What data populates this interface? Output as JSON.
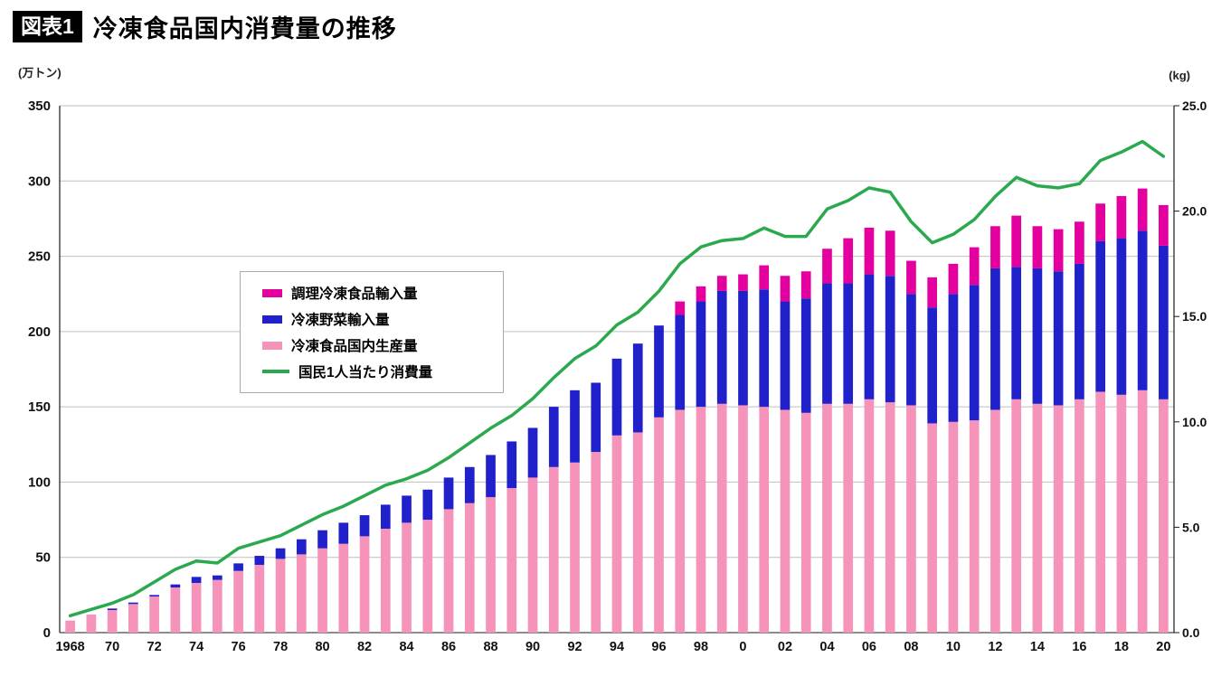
{
  "header": {
    "badge": "図表1",
    "title": "冷凍食品国内消費量の推移"
  },
  "axes": {
    "left_unit": "(万トン)",
    "right_unit": "(kg)",
    "left_ticks": [
      0,
      50,
      100,
      150,
      200,
      250,
      300,
      350
    ],
    "right_ticks": [
      "0.0",
      "5.0",
      "10.0",
      "15.0",
      "20.0",
      "25.0"
    ]
  },
  "colors": {
    "grid": "#bfbfbf",
    "axis": "#1a1a1a"
  },
  "legend": {
    "items": [
      {
        "label": "調理冷凍食品輸入量",
        "color": "#e4009e",
        "type": "bar"
      },
      {
        "label": "冷凍野菜輸入量",
        "color": "#2121cc",
        "type": "bar"
      },
      {
        "label": "冷凍食品国内生産量",
        "color": "#f693bb",
        "type": "bar"
      },
      {
        "label": "国民1人当たり消費量",
        "color": "#2ba94e",
        "type": "line"
      }
    ]
  },
  "chart_data": {
    "type": "bar",
    "stacked": true,
    "title": "冷凍食品国内消費量の推移",
    "ylim_left": [
      0,
      350
    ],
    "ylim_right": [
      0,
      25
    ],
    "x": [
      1968,
      1969,
      1970,
      1971,
      1972,
      1973,
      1974,
      1975,
      1976,
      1977,
      1978,
      1979,
      1980,
      1981,
      1982,
      1983,
      1984,
      1985,
      1986,
      1987,
      1988,
      1989,
      1990,
      1991,
      1992,
      1993,
      1994,
      1995,
      1996,
      1997,
      1998,
      1999,
      2000,
      2001,
      2002,
      2003,
      2004,
      2005,
      2006,
      2007,
      2008,
      2009,
      2010,
      2011,
      2012,
      2013,
      2014,
      2015,
      2016,
      2017,
      2018,
      2019,
      2020
    ],
    "x_ticks": [
      "1968",
      "70",
      "72",
      "74",
      "76",
      "78",
      "80",
      "82",
      "84",
      "86",
      "88",
      "90",
      "92",
      "94",
      "96",
      "98",
      "0",
      "02",
      "04",
      "06",
      "08",
      "10",
      "12",
      "14",
      "16",
      "18",
      "20"
    ],
    "series": [
      {
        "name": "冷凍食品国内生産量",
        "color": "#f693bb",
        "values": [
          8,
          12,
          15,
          19,
          24,
          30,
          33,
          35,
          41,
          45,
          49,
          52,
          56,
          59,
          64,
          69,
          73,
          75,
          82,
          86,
          90,
          96,
          103,
          110,
          113,
          120,
          131,
          133,
          143,
          148,
          150,
          152,
          151,
          150,
          148,
          146,
          152,
          152,
          155,
          153,
          151,
          139,
          140,
          141,
          148,
          155,
          152,
          151,
          155,
          160,
          158,
          161,
          155
        ]
      },
      {
        "name": "冷凍野菜輸入量",
        "color": "#2121cc",
        "values": [
          0,
          0,
          1,
          1,
          1,
          2,
          4,
          3,
          5,
          6,
          7,
          10,
          12,
          14,
          14,
          16,
          18,
          20,
          21,
          24,
          28,
          31,
          33,
          40,
          48,
          46,
          51,
          59,
          61,
          63,
          70,
          75,
          76,
          78,
          72,
          76,
          80,
          80,
          83,
          84,
          74,
          77,
          85,
          90,
          94,
          88,
          90,
          89,
          90,
          100,
          104,
          106,
          102
        ]
      },
      {
        "name": "調理冷凍食品輸入量",
        "color": "#e4009e",
        "values": [
          0,
          0,
          0,
          0,
          0,
          0,
          0,
          0,
          0,
          0,
          0,
          0,
          0,
          0,
          0,
          0,
          0,
          0,
          0,
          0,
          0,
          0,
          0,
          0,
          0,
          0,
          0,
          0,
          0,
          9,
          10,
          10,
          11,
          16,
          17,
          18,
          23,
          30,
          31,
          30,
          22,
          20,
          20,
          25,
          28,
          34,
          28,
          28,
          28,
          25,
          28,
          28,
          27
        ]
      }
    ],
    "line_series": {
      "name": "国民1人当たり消費量",
      "color": "#2ba94e",
      "axis": "right",
      "values": [
        0.8,
        1.1,
        1.4,
        1.8,
        2.4,
        3.0,
        3.4,
        3.3,
        4.0,
        4.3,
        4.6,
        5.1,
        5.6,
        6.0,
        6.5,
        7.0,
        7.3,
        7.7,
        8.3,
        9.0,
        9.7,
        10.3,
        11.1,
        12.1,
        13.0,
        13.6,
        14.6,
        15.2,
        16.2,
        17.5,
        18.3,
        18.6,
        18.7,
        19.2,
        18.8,
        18.8,
        20.1,
        20.5,
        21.1,
        20.9,
        19.5,
        18.5,
        18.9,
        19.6,
        20.7,
        21.6,
        21.2,
        21.1,
        21.3,
        22.4,
        22.8,
        23.3,
        22.6
      ]
    }
  }
}
